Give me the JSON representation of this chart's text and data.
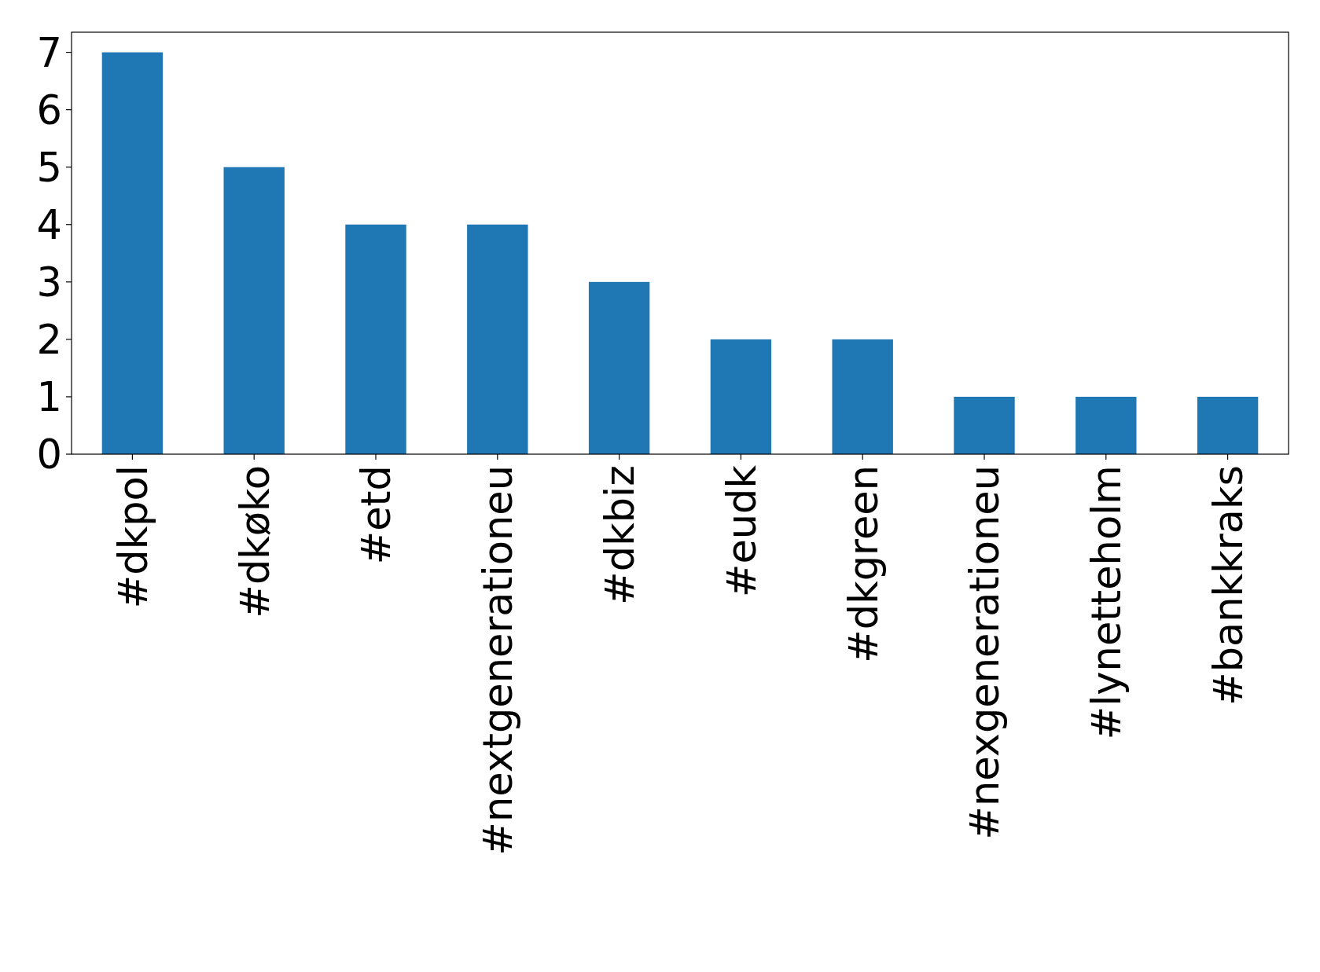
{
  "chart_data": {
    "type": "bar",
    "categories": [
      "#dkpol",
      "#dkøko",
      "#etd",
      "#nextgenerationeu",
      "#dkbiz",
      "#eudk",
      "#dkgreen",
      "#nexgenerationeu",
      "#lynetteholm",
      "#bankkraks"
    ],
    "values": [
      7,
      5,
      4,
      4,
      3,
      2,
      2,
      1,
      1,
      1
    ],
    "color": "#1f77b4",
    "ylim": [
      0,
      7.35
    ],
    "yticks": [
      0,
      1,
      2,
      3,
      4,
      5,
      6,
      7
    ],
    "grid": false
  }
}
